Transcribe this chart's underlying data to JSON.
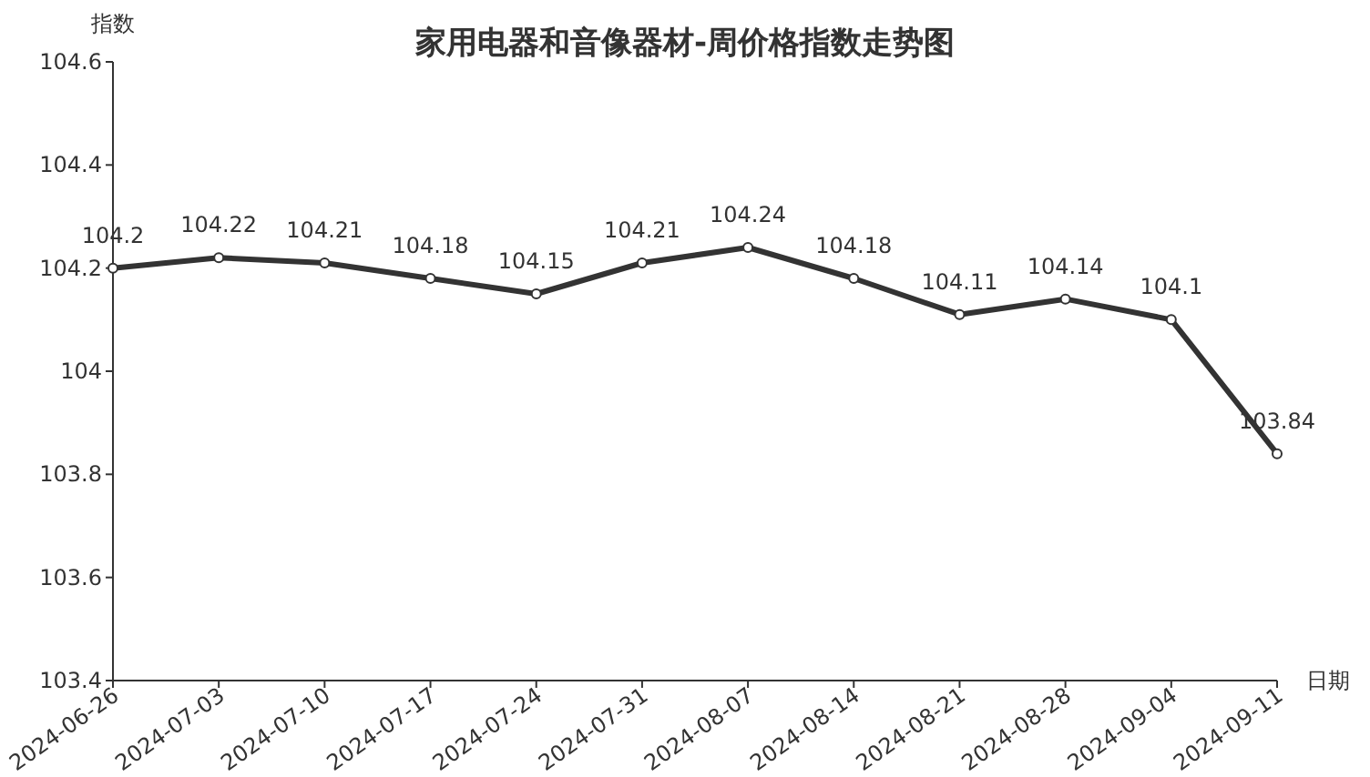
{
  "chart_data": {
    "type": "line",
    "title": "家用电器和音像器材-周价格指数走势图",
    "ylabel": "指数",
    "xlabel": "日期",
    "categories": [
      "2024-06-26",
      "2024-07-03",
      "2024-07-10",
      "2024-07-17",
      "2024-07-24",
      "2024-07-31",
      "2024-08-07",
      "2024-08-14",
      "2024-08-21",
      "2024-08-28",
      "2024-09-04",
      "2024-09-11"
    ],
    "values": [
      104.2,
      104.22,
      104.21,
      104.18,
      104.15,
      104.21,
      104.24,
      104.18,
      104.11,
      104.14,
      104.1,
      103.84
    ],
    "color": "#333333",
    "marker": "circle",
    "data_labels": true,
    "ylim": [
      103.4,
      104.6
    ],
    "yticks": [
      103.4,
      103.6,
      103.8,
      104,
      104.2,
      104.4,
      104.6
    ]
  }
}
